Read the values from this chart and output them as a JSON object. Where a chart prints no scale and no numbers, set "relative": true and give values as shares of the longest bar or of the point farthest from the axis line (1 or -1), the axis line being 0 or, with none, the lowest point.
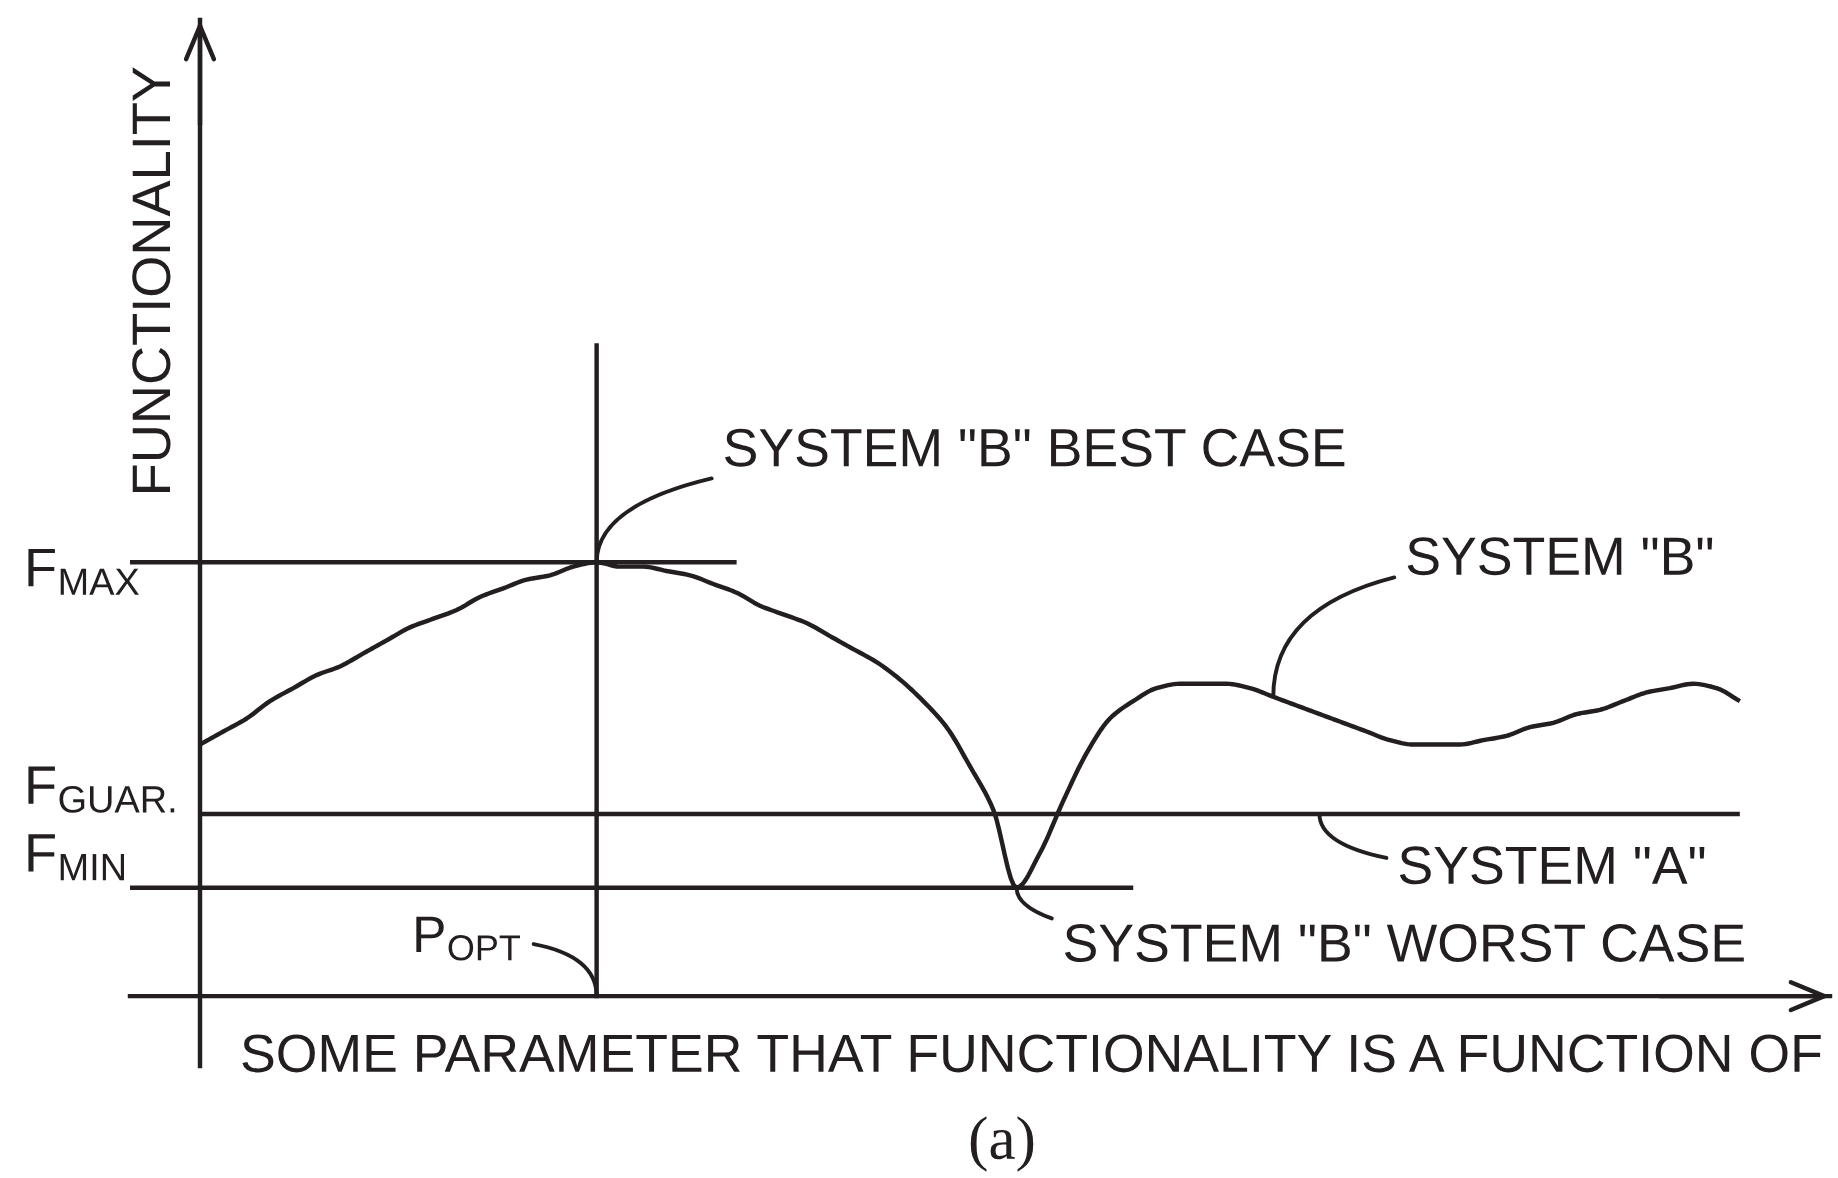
{
  "chart_data": {
    "type": "line",
    "relative": true,
    "xlabel": "SOME PARAMETER THAT FUNCTIONALITY IS A FUNCTION OF",
    "ylabel": "FUNCTIONALITY",
    "categories": [
      null,
      null,
      null,
      null,
      null,
      null,
      null,
      null,
      null,
      null,
      null,
      null,
      null,
      null,
      null,
      null,
      null,
      null,
      null,
      null,
      null,
      null,
      null,
      null,
      null,
      null,
      null,
      null,
      null,
      null,
      null,
      null,
      null,
      null,
      null,
      null,
      null,
      null,
      null,
      null,
      null,
      null,
      null,
      null,
      null,
      null,
      null,
      null,
      null,
      null,
      null,
      null,
      null,
      null,
      null,
      null,
      null,
      null,
      null,
      null,
      null,
      null,
      null,
      null,
      null,
      null,
      null,
      null,
      null,
      null
    ],
    "series": [
      {
        "name": "SYSTEM \"B\"",
        "color": "#231f20",
        "values": [
          null,
          null,
          null,
          0.58,
          0.61,
          0.64,
          0.68,
          0.71,
          0.74,
          0.76,
          0.79,
          0.82,
          0.85,
          0.87,
          0.89,
          0.92,
          0.94,
          0.96,
          0.97,
          0.99,
          1.0,
          0.99,
          0.99,
          0.98,
          0.97,
          0.95,
          0.93,
          0.9,
          0.88,
          0.86,
          0.83,
          0.8,
          0.77,
          0.73,
          0.68,
          0.62,
          0.53,
          0.43,
          0.25,
          0.33,
          0.45,
          0.56,
          0.64,
          0.68,
          0.71,
          0.72,
          0.72,
          0.72,
          0.71,
          0.69,
          0.67,
          0.65,
          0.63,
          0.61,
          0.59,
          0.58,
          0.58,
          0.58,
          0.59,
          0.6,
          0.62,
          0.63,
          0.65,
          0.66,
          0.68,
          0.7,
          0.71,
          0.72,
          0.71,
          0.68
        ]
      },
      {
        "name": "SYSTEM \"A\"",
        "color": "#231f20",
        "values": [
          null,
          null,
          null,
          0.42,
          0.42,
          0.42,
          0.42,
          0.42,
          0.42,
          0.42,
          0.42,
          0.42,
          0.42,
          0.42,
          0.42,
          0.42,
          0.42,
          0.42,
          0.42,
          0.42,
          0.42,
          0.42,
          0.42,
          0.42,
          0.42,
          0.42,
          0.42,
          0.42,
          0.42,
          0.42,
          0.42,
          0.42,
          0.42,
          0.42,
          0.42,
          0.42,
          0.42,
          0.42,
          0.42,
          0.42,
          0.42,
          0.42,
          0.42,
          0.42,
          0.42,
          0.42,
          0.42,
          0.42,
          0.42,
          0.42,
          0.42,
          0.42,
          0.42,
          0.42,
          0.42,
          0.42,
          0.42,
          0.42,
          0.42,
          0.42,
          0.42,
          0.42,
          0.42,
          0.42,
          0.42,
          0.42,
          0.42,
          0.42,
          0.42,
          0.42
        ]
      },
      {
        "color": "#231f20",
        "values": [
          1,
          1,
          1,
          1,
          1,
          1,
          1,
          1,
          1,
          1,
          1,
          1,
          1,
          1,
          1,
          1,
          1,
          1,
          1,
          1,
          1,
          1,
          1,
          1,
          1,
          1,
          1,
          null,
          null,
          null,
          null,
          null,
          null,
          null,
          null,
          null,
          null,
          null,
          null,
          null,
          null,
          null,
          null,
          null,
          null,
          null,
          null,
          null,
          null,
          null,
          null,
          null,
          null,
          null,
          null,
          null,
          null,
          null,
          null,
          null,
          null,
          null,
          null,
          null,
          null,
          null,
          null,
          null,
          null,
          null
        ]
      },
      {
        "color": "#231f20",
        "values": [
          0.25,
          0.25,
          0.25,
          0.25,
          0.25,
          0.25,
          0.25,
          0.25,
          0.25,
          0.25,
          0.25,
          0.25,
          0.25,
          0.25,
          0.25,
          0.25,
          0.25,
          0.25,
          0.25,
          0.25,
          0.25,
          0.25,
          0.25,
          0.25,
          0.25,
          0.25,
          0.25,
          0.25,
          0.25,
          0.25,
          0.25,
          0.25,
          0.25,
          0.25,
          0.25,
          0.25,
          0.25,
          0.25,
          0.25,
          0.25,
          0.25,
          0.25,
          0.25,
          0.25,
          null,
          null,
          null,
          null,
          null,
          null,
          null,
          null,
          null,
          null,
          null,
          null,
          null,
          null,
          null,
          null,
          null,
          null,
          null,
          null,
          null,
          null,
          null,
          null,
          null,
          null
        ]
      }
    ],
    "annotations": [
      "F$_{MAX}$",
      "F$_{GUAR.}$",
      "F$_{MIN}$",
      "SYSTEM \"B\" BEST CASE",
      "SYSTEM \"B\" WORST CASE",
      "P$_{OPT}$",
      "(a)"
    ]
  }
}
